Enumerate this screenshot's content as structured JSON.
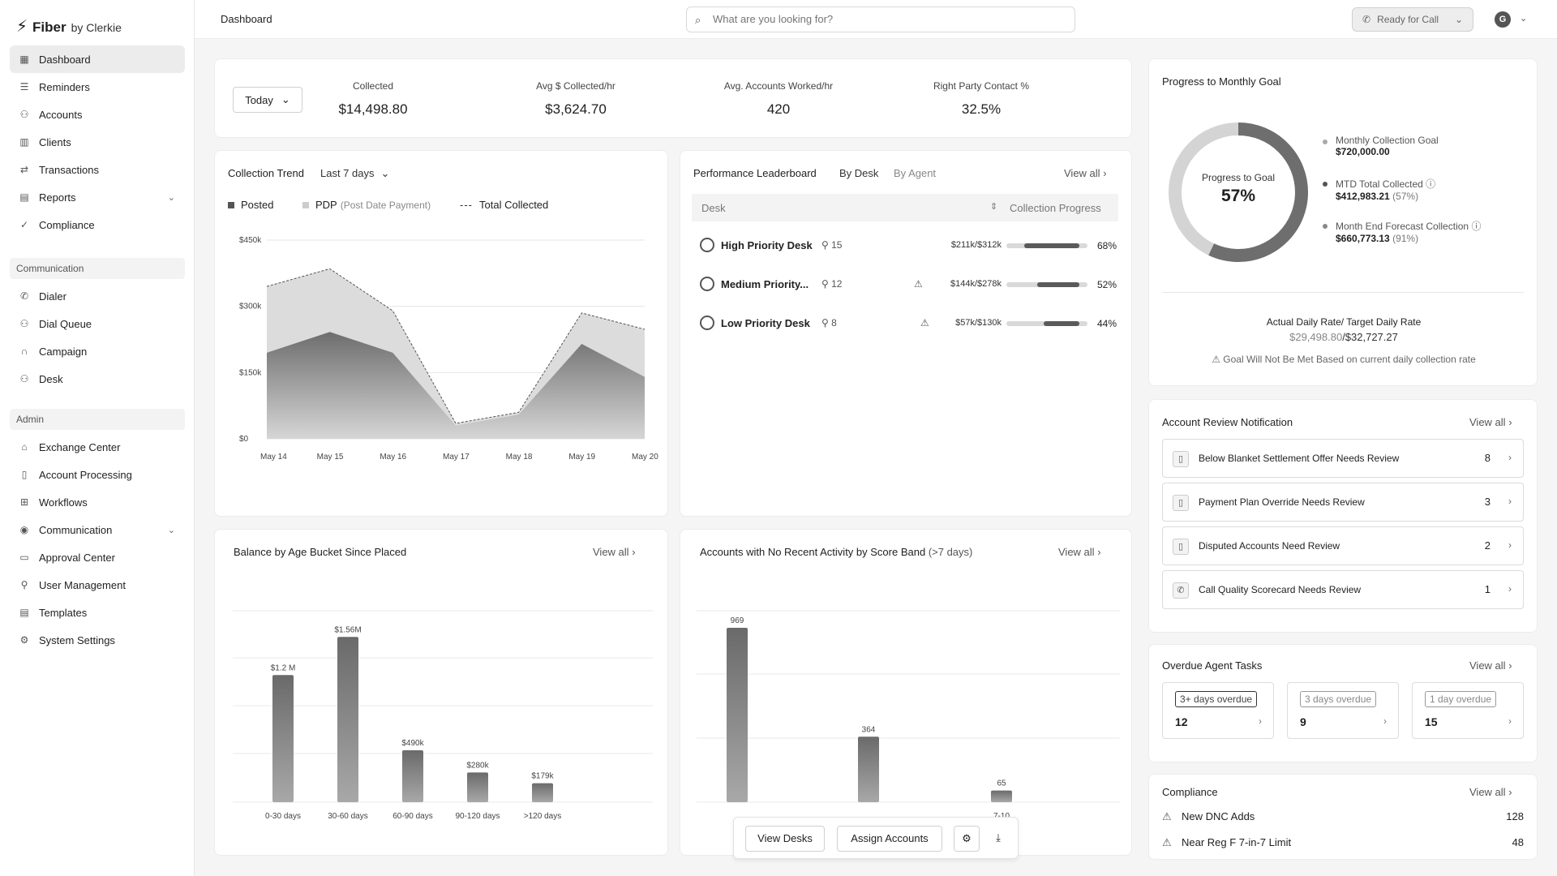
{
  "app": {
    "brand": "Fiber",
    "by": "by Clerkie"
  },
  "header": {
    "page_title": "Dashboard",
    "search_placeholder": "What are you looking for?",
    "call_status": "Ready for Call",
    "avatar_initial": "G"
  },
  "sidebar": {
    "main": [
      {
        "label": "Dashboard",
        "icon": "dashboard-icon",
        "active": true
      },
      {
        "label": "Reminders",
        "icon": "list-icon"
      },
      {
        "label": "Accounts",
        "icon": "users-icon"
      },
      {
        "label": "Clients",
        "icon": "building-icon"
      },
      {
        "label": "Transactions",
        "icon": "swap-icon"
      },
      {
        "label": "Reports",
        "icon": "report-icon",
        "expandable": true
      },
      {
        "label": "Compliance",
        "icon": "check-circle-icon"
      }
    ],
    "communication_label": "Communication",
    "communication": [
      {
        "label": "Dialer",
        "icon": "phone-icon"
      },
      {
        "label": "Dial Queue",
        "icon": "queue-icon"
      },
      {
        "label": "Campaign",
        "icon": "headset-icon"
      },
      {
        "label": "Desk",
        "icon": "desk-icon"
      }
    ],
    "admin_label": "Admin",
    "admin": [
      {
        "label": "Exchange Center",
        "icon": "home-icon"
      },
      {
        "label": "Account Processing",
        "icon": "file-icon"
      },
      {
        "label": "Workflows",
        "icon": "workflow-icon"
      },
      {
        "label": "Communication",
        "icon": "broadcast-icon",
        "expandable": true
      },
      {
        "label": "Approval Center",
        "icon": "approval-icon"
      },
      {
        "label": "User Management",
        "icon": "user-gear-icon"
      },
      {
        "label": "Templates",
        "icon": "template-icon"
      },
      {
        "label": "System Settings",
        "icon": "settings-icon"
      }
    ]
  },
  "kpis": {
    "range": "Today",
    "items": [
      {
        "label": "Collected",
        "value": "$14,498.80"
      },
      {
        "label": "Avg $ Collected/hr",
        "value": "$3,624.70"
      },
      {
        "label": "Avg. Accounts Worked/hr",
        "value": "420"
      },
      {
        "label": "Right Party Contact %",
        "value": "32.5%"
      }
    ]
  },
  "collection_trend": {
    "title": "Collection Trend",
    "range": "Last 7 days",
    "legend": {
      "posted": "Posted",
      "pdp": "PDP",
      "pdp_note": "(Post Date Payment)",
      "total": "Total Collected"
    }
  },
  "leaderboard": {
    "title": "Performance Leaderboard",
    "tab_desk": "By Desk",
    "tab_agent": "By Agent",
    "view_all": "View all",
    "col_desk": "Desk",
    "col_progress": "Collection Progress",
    "rows": [
      {
        "name": "High Priority Desk",
        "count": "15",
        "amount": "$211k/$312k",
        "pct": "68%",
        "progress": 0.68,
        "warn": false
      },
      {
        "name": "Medium Priority...",
        "count": "12",
        "amount": "$144k/$278k",
        "pct": "52%",
        "progress": 0.52,
        "warn": true
      },
      {
        "name": "Low Priority Desk",
        "count": "8",
        "amount": "$57k/$130k",
        "pct": "44%",
        "progress": 0.44,
        "warn": true
      }
    ]
  },
  "monthly_goal": {
    "title": "Progress to Monthly Goal",
    "center_label": "Progress to Goal",
    "center_value": "57%",
    "progress": 0.57,
    "legend": [
      {
        "label": "Monthly Collection Goal",
        "value": "$720,000.00",
        "sub": ""
      },
      {
        "label": "MTD Total Collected",
        "value": "$412,983.21",
        "sub": "(57%)"
      },
      {
        "label": "Month End Forecast Collection",
        "value": "$660,773.13",
        "sub": "(91%)"
      }
    ],
    "rate_label": "Actual Daily Rate/ Target Daily Rate",
    "rate_actual": "$29,498.80",
    "rate_target": "/$32,727.27",
    "warning": "Goal Will Not Be Met",
    "warning_note": "Based on current daily collection rate"
  },
  "account_review": {
    "title": "Account Review Notification",
    "view_all": "View all",
    "rows": [
      {
        "label": "Below Blanket Settlement Offer Needs Review",
        "count": "8",
        "icon": "document-icon"
      },
      {
        "label": "Payment Plan Override Needs Review",
        "count": "3",
        "icon": "document-icon"
      },
      {
        "label": "Disputed Accounts Need Review",
        "count": "2",
        "icon": "document-icon"
      },
      {
        "label": "Call Quality Scorecard Needs Review",
        "count": "1",
        "icon": "phone-icon"
      }
    ]
  },
  "overdue_tasks": {
    "title": "Overdue Agent Tasks",
    "view_all": "View all",
    "items": [
      {
        "label": "3+ days overdue",
        "count": "12"
      },
      {
        "label": "3 days overdue",
        "count": "9"
      },
      {
        "label": "1 day overdue",
        "count": "15"
      }
    ]
  },
  "compliance": {
    "title": "Compliance",
    "view_all": "View all",
    "rows": [
      {
        "label": "New DNC Adds",
        "value": "128"
      },
      {
        "label": "Near Reg F 7-in-7 Limit",
        "value": "48"
      }
    ]
  },
  "balance_card": {
    "title": "Balance by Age Bucket Since Placed",
    "view_all": "View all"
  },
  "activity_card": {
    "title": "Accounts with No Recent Activity by Score Band",
    "subtitle": "(>7 days)",
    "view_all": "View all"
  },
  "floating_actions": {
    "view_desks": "View Desks",
    "assign_accounts": "Assign Accounts"
  },
  "chart_data": [
    {
      "type": "area",
      "x": [
        "May 14",
        "May 15",
        "May 16",
        "May 17",
        "May 18",
        "May 19",
        "May 20"
      ],
      "y_ticks": [
        "$450k",
        "$300k",
        "$150k",
        "$0"
      ],
      "ylim": [
        0,
        450000
      ],
      "series": [
        {
          "name": "Posted",
          "values": [
            195000,
            242000,
            195000,
            30000,
            55000,
            215000,
            140000
          ]
        },
        {
          "name": "Total Collected",
          "values": [
            345000,
            385000,
            290000,
            35000,
            60000,
            285000,
            248000
          ]
        }
      ],
      "grid": true
    },
    {
      "type": "bar",
      "categories": [
        "0-30 days",
        "30-60 days",
        "60-90 days",
        "90-120 days",
        ">120 days"
      ],
      "values": [
        1200000,
        1560000,
        490000,
        280000,
        179000
      ],
      "labels": [
        "$1.2 M",
        "$1.56M",
        "$490k",
        "$280k",
        "$179k"
      ],
      "ylim": [
        0,
        1700000
      ],
      "grid": true
    },
    {
      "type": "bar",
      "categories": [
        "",
        "",
        "7-10"
      ],
      "values": [
        969,
        364,
        65
      ],
      "labels": [
        "969",
        "364",
        "65"
      ],
      "ylim": [
        0,
        1100
      ],
      "grid": true
    }
  ]
}
